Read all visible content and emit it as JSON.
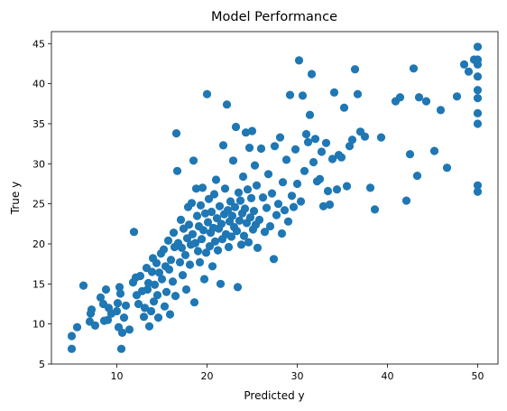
{
  "chart_data": {
    "type": "scatter",
    "title": "Model Performance",
    "xlabel": "Predicted y",
    "ylabel": "True y",
    "xlim": [
      2.75,
      52.25
    ],
    "ylim": [
      5.0,
      46.5
    ],
    "xticks": [
      10,
      20,
      30,
      40,
      50
    ],
    "yticks": [
      5,
      10,
      15,
      20,
      25,
      30,
      35,
      40,
      45
    ],
    "grid": false,
    "color": "#1f77b4",
    "points": [
      [
        5.0,
        6.9
      ],
      [
        5.0,
        8.5
      ],
      [
        5.6,
        9.6
      ],
      [
        6.3,
        14.8
      ],
      [
        7.0,
        10.3
      ],
      [
        7.1,
        11.3
      ],
      [
        7.2,
        11.8
      ],
      [
        7.6,
        9.8
      ],
      [
        8.2,
        13.3
      ],
      [
        8.5,
        12.5
      ],
      [
        8.6,
        10.4
      ],
      [
        8.8,
        14.3
      ],
      [
        9.0,
        10.5
      ],
      [
        9.1,
        12.0
      ],
      [
        9.4,
        11.3
      ],
      [
        10.0,
        11.6
      ],
      [
        10.1,
        12.6
      ],
      [
        10.2,
        9.6
      ],
      [
        10.3,
        14.6
      ],
      [
        10.4,
        13.8
      ],
      [
        10.5,
        6.9
      ],
      [
        10.6,
        8.9
      ],
      [
        10.8,
        10.8
      ],
      [
        11.0,
        12.3
      ],
      [
        11.4,
        9.3
      ],
      [
        11.8,
        15.2
      ],
      [
        11.9,
        21.5
      ],
      [
        12.1,
        15.8
      ],
      [
        12.2,
        13.6
      ],
      [
        12.4,
        12.5
      ],
      [
        12.6,
        16.0
      ],
      [
        12.8,
        14.1
      ],
      [
        13.0,
        10.9
      ],
      [
        13.1,
        12.0
      ],
      [
        13.3,
        17.0
      ],
      [
        13.4,
        14.3
      ],
      [
        13.5,
        15.1
      ],
      [
        13.6,
        9.7
      ],
      [
        13.8,
        11.6
      ],
      [
        13.9,
        16.5
      ],
      [
        14.0,
        18.2
      ],
      [
        14.1,
        12.8
      ],
      [
        14.2,
        14.9
      ],
      [
        14.4,
        17.6
      ],
      [
        14.5,
        13.6
      ],
      [
        14.6,
        10.8
      ],
      [
        14.7,
        16.4
      ],
      [
        14.9,
        18.8
      ],
      [
        15.0,
        15.6
      ],
      [
        15.2,
        19.3
      ],
      [
        15.3,
        12.2
      ],
      [
        15.4,
        17.2
      ],
      [
        15.5,
        14.0
      ],
      [
        15.7,
        20.4
      ],
      [
        15.8,
        16.8
      ],
      [
        15.9,
        11.2
      ],
      [
        16.0,
        18.0
      ],
      [
        16.2,
        15.3
      ],
      [
        16.3,
        21.4
      ],
      [
        16.4,
        19.6
      ],
      [
        16.5,
        13.5
      ],
      [
        16.6,
        33.8
      ],
      [
        16.7,
        29.1
      ],
      [
        16.8,
        20.1
      ],
      [
        17.0,
        17.7
      ],
      [
        17.1,
        23.0
      ],
      [
        17.2,
        19.5
      ],
      [
        17.3,
        16.1
      ],
      [
        17.4,
        21.9
      ],
      [
        17.6,
        18.6
      ],
      [
        17.7,
        14.3
      ],
      [
        17.8,
        20.7
      ],
      [
        17.9,
        24.6
      ],
      [
        18.0,
        22.4
      ],
      [
        18.1,
        17.4
      ],
      [
        18.2,
        19.9
      ],
      [
        18.3,
        25.1
      ],
      [
        18.4,
        21.2
      ],
      [
        18.5,
        30.4
      ],
      [
        18.6,
        12.7
      ],
      [
        18.7,
        20.1
      ],
      [
        18.8,
        26.9
      ],
      [
        18.9,
        23.5
      ],
      [
        19.0,
        19.1
      ],
      [
        19.1,
        22.2
      ],
      [
        19.2,
        17.7
      ],
      [
        19.3,
        24.8
      ],
      [
        19.4,
        20.6
      ],
      [
        19.5,
        27.0
      ],
      [
        19.6,
        21.7
      ],
      [
        19.7,
        15.6
      ],
      [
        19.8,
        23.8
      ],
      [
        19.9,
        18.9
      ],
      [
        20.0,
        38.7
      ],
      [
        20.1,
        22.7
      ],
      [
        20.2,
        25.6
      ],
      [
        20.3,
        19.7
      ],
      [
        20.4,
        21.4
      ],
      [
        20.5,
        24.0
      ],
      [
        20.6,
        17.2
      ],
      [
        20.7,
        22.0
      ],
      [
        20.8,
        26.2
      ],
      [
        20.9,
        20.3
      ],
      [
        21.0,
        28.0
      ],
      [
        21.1,
        23.2
      ],
      [
        21.2,
        19.2
      ],
      [
        21.3,
        21.9
      ],
      [
        21.4,
        24.7
      ],
      [
        21.5,
        15.0
      ],
      [
        21.6,
        22.5
      ],
      [
        21.7,
        20.6
      ],
      [
        21.8,
        32.3
      ],
      [
        21.9,
        23.7
      ],
      [
        22.0,
        26.9
      ],
      [
        22.1,
        21.2
      ],
      [
        22.2,
        37.4
      ],
      [
        22.3,
        24.2
      ],
      [
        22.4,
        19.6
      ],
      [
        22.5,
        22.8
      ],
      [
        22.6,
        25.3
      ],
      [
        22.7,
        20.9
      ],
      [
        22.8,
        23.5
      ],
      [
        22.9,
        30.4
      ],
      [
        23.0,
        22.1
      ],
      [
        23.1,
        24.6
      ],
      [
        23.2,
        34.6
      ],
      [
        23.3,
        21.6
      ],
      [
        23.4,
        14.6
      ],
      [
        23.5,
        26.4
      ],
      [
        23.6,
        22.9
      ],
      [
        23.7,
        25.4
      ],
      [
        23.8,
        19.9
      ],
      [
        23.9,
        23.8
      ],
      [
        24.0,
        28.4
      ],
      [
        24.1,
        21.0
      ],
      [
        24.2,
        24.4
      ],
      [
        24.3,
        33.9
      ],
      [
        24.4,
        22.6
      ],
      [
        24.5,
        26.8
      ],
      [
        24.6,
        20.2
      ],
      [
        24.7,
        32.0
      ],
      [
        24.8,
        23.3
      ],
      [
        24.9,
        25.7
      ],
      [
        25.0,
        34.1
      ],
      [
        25.1,
        21.8
      ],
      [
        25.2,
        24.1
      ],
      [
        25.3,
        29.8
      ],
      [
        25.4,
        22.4
      ],
      [
        25.5,
        27.3
      ],
      [
        25.6,
        19.5
      ],
      [
        25.8,
        23.0
      ],
      [
        26.0,
        31.9
      ],
      [
        26.2,
        25.8
      ],
      [
        26.4,
        21.5
      ],
      [
        26.6,
        24.5
      ],
      [
        26.8,
        28.7
      ],
      [
        27.0,
        22.2
      ],
      [
        27.2,
        26.3
      ],
      [
        27.4,
        18.1
      ],
      [
        27.5,
        32.2
      ],
      [
        27.7,
        23.6
      ],
      [
        27.9,
        25.0
      ],
      [
        28.1,
        33.3
      ],
      [
        28.3,
        21.3
      ],
      [
        28.4,
        27.7
      ],
      [
        28.6,
        24.2
      ],
      [
        28.8,
        30.5
      ],
      [
        29.0,
        22.8
      ],
      [
        29.2,
        38.6
      ],
      [
        29.4,
        26.0
      ],
      [
        29.6,
        24.6
      ],
      [
        29.8,
        31.8
      ],
      [
        30.0,
        27.5
      ],
      [
        30.2,
        42.9
      ],
      [
        30.4,
        25.3
      ],
      [
        30.6,
        38.5
      ],
      [
        30.8,
        29.1
      ],
      [
        31.0,
        33.7
      ],
      [
        31.2,
        32.7
      ],
      [
        31.4,
        36.1
      ],
      [
        31.6,
        41.2
      ],
      [
        31.8,
        30.2
      ],
      [
        32.0,
        33.1
      ],
      [
        32.2,
        27.8
      ],
      [
        32.5,
        28.1
      ],
      [
        32.7,
        31.5
      ],
      [
        32.9,
        24.7
      ],
      [
        33.2,
        32.6
      ],
      [
        33.4,
        26.6
      ],
      [
        33.6,
        24.9
      ],
      [
        33.9,
        30.6
      ],
      [
        34.1,
        38.9
      ],
      [
        34.4,
        26.8
      ],
      [
        34.6,
        31.1
      ],
      [
        34.9,
        30.8
      ],
      [
        35.2,
        37.0
      ],
      [
        35.5,
        27.2
      ],
      [
        35.8,
        32.2
      ],
      [
        36.1,
        33.0
      ],
      [
        36.4,
        41.8
      ],
      [
        36.7,
        38.7
      ],
      [
        37.0,
        34.0
      ],
      [
        37.5,
        33.4
      ],
      [
        38.1,
        27.0
      ],
      [
        38.6,
        24.3
      ],
      [
        39.3,
        33.3
      ],
      [
        40.9,
        37.8
      ],
      [
        41.4,
        38.3
      ],
      [
        42.1,
        25.4
      ],
      [
        42.5,
        31.2
      ],
      [
        42.9,
        41.9
      ],
      [
        43.3,
        28.5
      ],
      [
        43.5,
        38.3
      ],
      [
        44.3,
        37.8
      ],
      [
        45.2,
        31.6
      ],
      [
        45.9,
        36.7
      ],
      [
        46.6,
        29.5
      ],
      [
        47.7,
        38.4
      ],
      [
        48.5,
        42.4
      ],
      [
        49.0,
        41.5
      ],
      [
        49.6,
        43.0
      ],
      [
        50.0,
        26.5
      ],
      [
        50.0,
        27.3
      ],
      [
        50.0,
        35.0
      ],
      [
        50.0,
        36.3
      ],
      [
        50.0,
        38.2
      ],
      [
        50.0,
        39.2
      ],
      [
        50.0,
        40.9
      ],
      [
        50.0,
        42.4
      ],
      [
        50.0,
        43.0
      ],
      [
        50.0,
        44.6
      ]
    ]
  }
}
